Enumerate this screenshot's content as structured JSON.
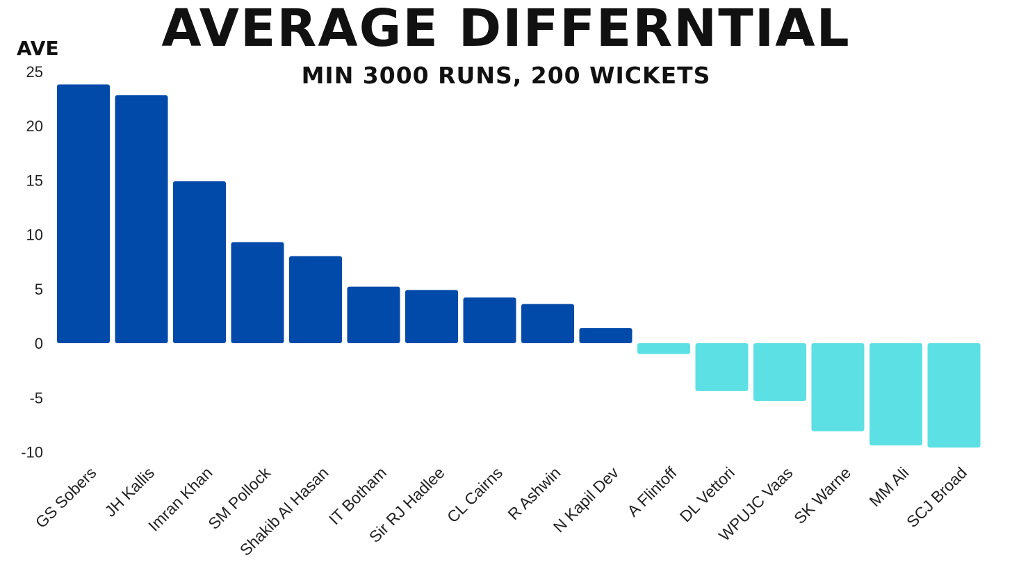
{
  "chart_data": {
    "type": "bar",
    "title": "AVERAGE DIFFERNTIAL",
    "subtitle": "MIN 3000 RUNS, 200 WICKETS",
    "ylabel": "AVE",
    "xlabel": "",
    "ylim": [
      -10,
      25
    ],
    "yticks": [
      "25",
      "20",
      "15",
      "10",
      "5",
      "0",
      "-5",
      "-10"
    ],
    "grid": false,
    "categories": [
      "GS Sobers",
      "JH Kallis",
      "Imran Khan",
      "SM Pollock",
      "Shakib Al Hasan",
      "IT Botham",
      "Sir RJ Hadlee",
      "CL Cairns",
      "R Ashwin",
      "N Kapil Dev",
      "A Flintoff",
      "DL Vettori",
      "WPUJC Vaas",
      "SK Warne",
      "MM Ali",
      "SCJ Broad"
    ],
    "values": [
      23.8,
      22.8,
      14.9,
      9.3,
      8.0,
      5.2,
      4.9,
      4.2,
      3.6,
      1.4,
      -1.0,
      -4.4,
      -5.3,
      -8.1,
      -9.4,
      -9.6
    ],
    "colors": {
      "positive": "#024aa9",
      "negative": "#5de0e3"
    }
  }
}
